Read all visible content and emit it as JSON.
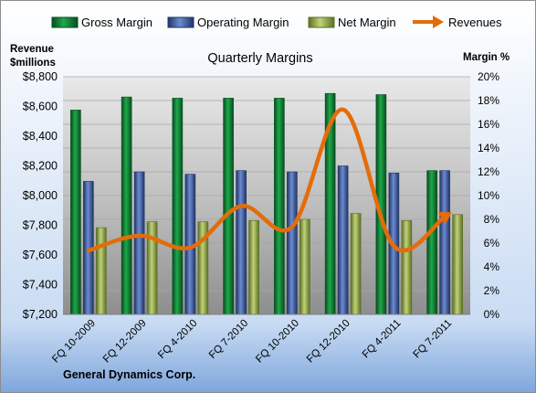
{
  "chart_data": {
    "type": "bar",
    "title": "Quarterly Margins",
    "company": "General Dynamics Corp.",
    "y_left_label_line1": "Revenue",
    "y_left_label_line2": "$millions",
    "y_right_label": "Margin %",
    "categories": [
      "FQ 10-2009",
      "FQ 12-2009",
      "FQ 4-2010",
      "FQ 7-2010",
      "FQ 10-2010",
      "FQ 12-2010",
      "FQ 4-2011",
      "FQ 7-2011"
    ],
    "y_left_ticks": [
      "$7,200",
      "$7,400",
      "$7,600",
      "$7,800",
      "$8,000",
      "$8,200",
      "$8,400",
      "$8,600",
      "$8,800"
    ],
    "y_right_ticks": [
      "0%",
      "2%",
      "4%",
      "6%",
      "8%",
      "10%",
      "12%",
      "14%",
      "16%",
      "18%",
      "20%"
    ],
    "ylim_left": [
      7200,
      8800
    ],
    "ylim_right": [
      0,
      20
    ],
    "legend_position": "top",
    "series": [
      {
        "name": "Gross Margin",
        "type": "bar",
        "axis": "right",
        "color": "#0c7a33",
        "values": [
          17.2,
          18.3,
          18.2,
          18.2,
          18.2,
          18.6,
          18.5,
          12.1
        ]
      },
      {
        "name": "Operating Margin",
        "type": "bar",
        "axis": "right",
        "color": "#3a5aa0",
        "values": [
          11.2,
          12.0,
          11.8,
          12.1,
          12.0,
          12.5,
          11.9,
          12.1
        ]
      },
      {
        "name": "Net Margin",
        "type": "bar",
        "axis": "right",
        "color": "#8fa84b",
        "values": [
          7.3,
          7.8,
          7.8,
          7.9,
          8.0,
          8.5,
          7.9,
          8.4
        ]
      },
      {
        "name": "Revenues",
        "type": "line",
        "axis": "left",
        "color": "#e46c0a",
        "values": [
          7630,
          7730,
          7650,
          7930,
          7790,
          8580,
          7660,
          7860
        ]
      }
    ]
  }
}
